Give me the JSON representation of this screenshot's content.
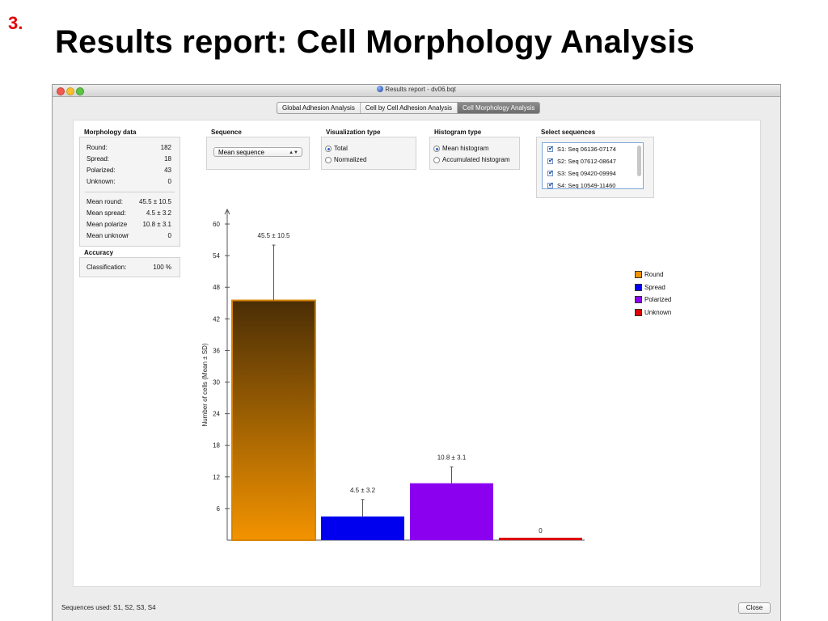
{
  "slide": {
    "number": "3.",
    "title": "Results report: Cell Morphology Analysis"
  },
  "window": {
    "title": "Results report - dv06.bqt",
    "tabs": [
      {
        "label": "Global Adhesion Analysis",
        "active": false
      },
      {
        "label": "Cell by Cell Adhesion Analysis",
        "active": false
      },
      {
        "label": "Cell Morphology Analysis",
        "active": true
      }
    ]
  },
  "morphology": {
    "heading": "Morphology data",
    "counts": [
      {
        "label": "Round:",
        "value": "182"
      },
      {
        "label": "Spread:",
        "value": "18"
      },
      {
        "label": "Polarized:",
        "value": "43"
      },
      {
        "label": "Unknown:",
        "value": "0"
      }
    ],
    "means": [
      {
        "label": "Mean round:",
        "value": "45.5 ± 10.5"
      },
      {
        "label": "Mean spread:",
        "value": "4.5 ± 3.2"
      },
      {
        "label": "Mean polarize",
        "value": "10.8 ± 3.1"
      },
      {
        "label": "Mean unknowr",
        "value": "0"
      }
    ]
  },
  "accuracy": {
    "heading": "Accuracy",
    "label": "Classification:",
    "value": "100 %"
  },
  "sequence": {
    "heading": "Sequence",
    "selected": "Mean sequence"
  },
  "visualization": {
    "heading": "Visualization type",
    "options": [
      {
        "label": "Total",
        "selected": true
      },
      {
        "label": "Normalized",
        "selected": false
      }
    ]
  },
  "histogram": {
    "heading": "Histogram type",
    "options": [
      {
        "label": "Mean histogram",
        "selected": true
      },
      {
        "label": "Accumulated histogram",
        "selected": false
      }
    ]
  },
  "select_sequences": {
    "heading": "Select sequences",
    "items": [
      {
        "label": "S1: Seq 06136-07174",
        "checked": true
      },
      {
        "label": "S2: Seq 07612-08647",
        "checked": true
      },
      {
        "label": "S3: Seq 09420-09994",
        "checked": true
      },
      {
        "label": "S4: Seq 10549-11460",
        "checked": true
      }
    ]
  },
  "chart_data": {
    "type": "bar",
    "title": "",
    "xlabel": "",
    "ylabel": "Number of cells (Mean ± SD)",
    "ylim": [
      0,
      62
    ],
    "yticks": [
      6,
      12,
      18,
      24,
      30,
      36,
      42,
      48,
      54,
      60
    ],
    "categories": [
      "Round",
      "Spread",
      "Polarized",
      "Unknown"
    ],
    "values": [
      45.5,
      4.5,
      10.8,
      0
    ],
    "errors": [
      10.5,
      3.2,
      3.1,
      0
    ],
    "value_labels": [
      "45.5 ± 10.5",
      "4.5 ± 3.2",
      "10.8 ± 3.1",
      "0"
    ],
    "colors": [
      "#f39300",
      "#0000ee",
      "#8b00ee",
      "#dd0000"
    ],
    "grid": false,
    "legend_position": "top-right"
  },
  "footer": {
    "sequences_used": "Sequences used: S1, S2, S3, S4",
    "close_label": "Close"
  }
}
